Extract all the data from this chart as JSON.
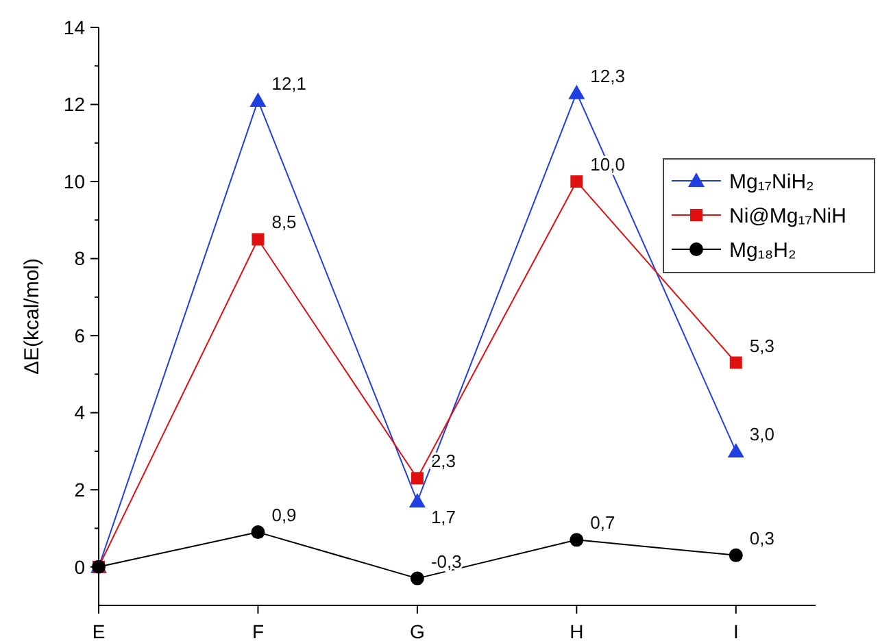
{
  "chart_data": {
    "type": "line",
    "ylabel": "ΔE(kcal/mol)",
    "categories": [
      "E",
      "F",
      "G",
      "H",
      "I"
    ],
    "ylim": [
      -1,
      14
    ],
    "yticks": [
      0,
      2,
      4,
      6,
      8,
      10,
      12,
      14
    ],
    "legend": "top right",
    "line_style": "solid",
    "series": [
      {
        "name": "Mg₁₇NiH₂",
        "color": "#1f3fe0",
        "marker": "triangle",
        "values": [
          0,
          12.1,
          1.7,
          12.3,
          3.0
        ],
        "value_labels": [
          null,
          "12,1",
          "1,7",
          "12,3",
          "3,0"
        ]
      },
      {
        "name": "Ni@Mg₁₇NiH",
        "color": "#e01010",
        "marker": "square",
        "values": [
          0,
          8.5,
          2.3,
          10.0,
          5.3
        ],
        "value_labels": [
          null,
          "8,5",
          "2,3",
          "10,0",
          "5,3"
        ]
      },
      {
        "name": "Mg₁₈H₂",
        "color": "#000000",
        "marker": "circle",
        "values": [
          0,
          0.9,
          -0.3,
          0.7,
          0.3
        ],
        "value_labels": [
          null,
          "0,9",
          "-0,3",
          "0,7",
          "0,3"
        ]
      }
    ]
  }
}
